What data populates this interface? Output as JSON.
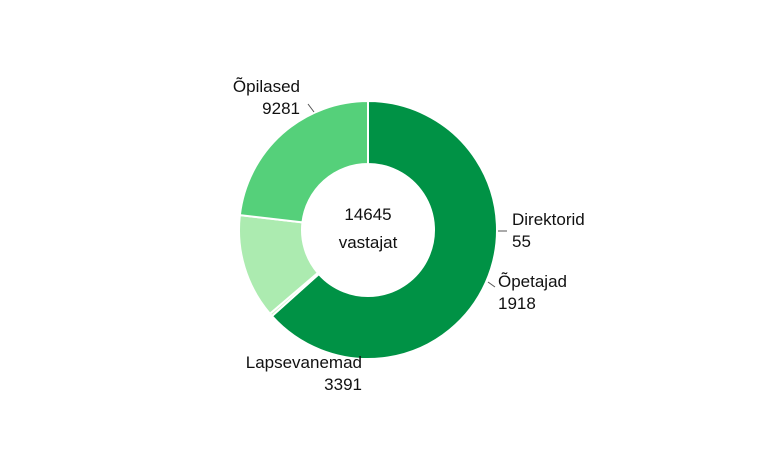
{
  "chart_data": {
    "type": "pie",
    "donut": true,
    "center": {
      "value": "14645",
      "label": "vastajat"
    },
    "slices": [
      {
        "name": "Õpilased",
        "value": 9281,
        "color": "#009245"
      },
      {
        "name": "Direktorid",
        "value": 55,
        "color": "#c8f0c4"
      },
      {
        "name": "Õpetajad",
        "value": 1918,
        "color": "#acebb0"
      },
      {
        "name": "Lapsevanemad",
        "value": 3391,
        "color": "#55d07a"
      }
    ]
  }
}
